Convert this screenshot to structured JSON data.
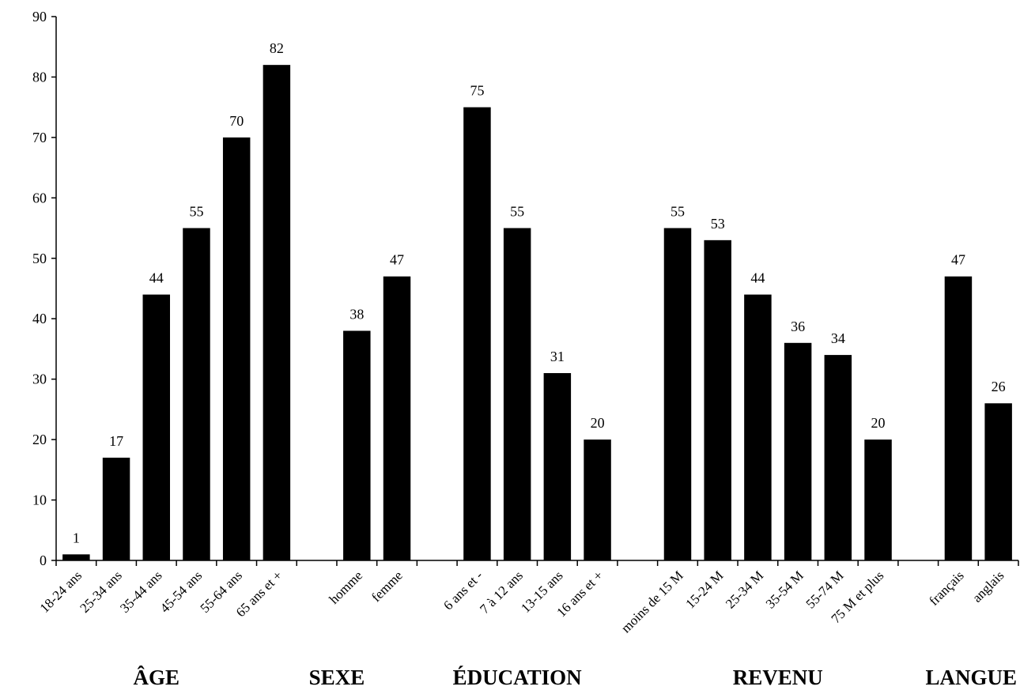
{
  "chart_data": {
    "type": "bar",
    "title": "",
    "xlabel": "",
    "ylabel": "",
    "ylim": [
      0,
      90
    ],
    "yticks": [
      0,
      10,
      20,
      30,
      40,
      50,
      60,
      70,
      80,
      90
    ],
    "grid": false,
    "bar_color": "#000000",
    "slots": [
      {
        "category": "18-24 ans",
        "value": 1
      },
      {
        "category": "25-34 ans",
        "value": 17
      },
      {
        "category": "35-44 ans",
        "value": 44
      },
      {
        "category": "45-54 ans",
        "value": 55
      },
      {
        "category": "55-64 ans",
        "value": 70
      },
      {
        "category": "65 ans et +",
        "value": 82
      },
      {
        "category": "",
        "value": null
      },
      {
        "category": "homme",
        "value": 38
      },
      {
        "category": "femme",
        "value": 47
      },
      {
        "category": "",
        "value": null
      },
      {
        "category": "6 ans et -",
        "value": 75
      },
      {
        "category": "7 à 12 ans",
        "value": 55
      },
      {
        "category": "13-15 ans",
        "value": 31
      },
      {
        "category": "16 ans et +",
        "value": 20
      },
      {
        "category": "",
        "value": null
      },
      {
        "category": "moins de 15 M",
        "value": 55
      },
      {
        "category": "15-24 M",
        "value": 53
      },
      {
        "category": "25-34 M",
        "value": 44
      },
      {
        "category": "35-54 M",
        "value": 36
      },
      {
        "category": "55-74 M",
        "value": 34
      },
      {
        "category": "75 M et plus",
        "value": 20
      },
      {
        "category": "",
        "value": null
      },
      {
        "category": "français",
        "value": 47
      },
      {
        "category": "anglais",
        "value": 26
      }
    ],
    "groups": [
      {
        "label": "ÂGE",
        "slot_center": 2.5
      },
      {
        "label": "SEXE",
        "slot_center": 7.0
      },
      {
        "label": "ÉDUCATION",
        "slot_center": 11.5
      },
      {
        "label": "REVENU",
        "slot_center": 18.0
      },
      {
        "label": "LANGUE",
        "slot_center": 23.0
      }
    ]
  }
}
